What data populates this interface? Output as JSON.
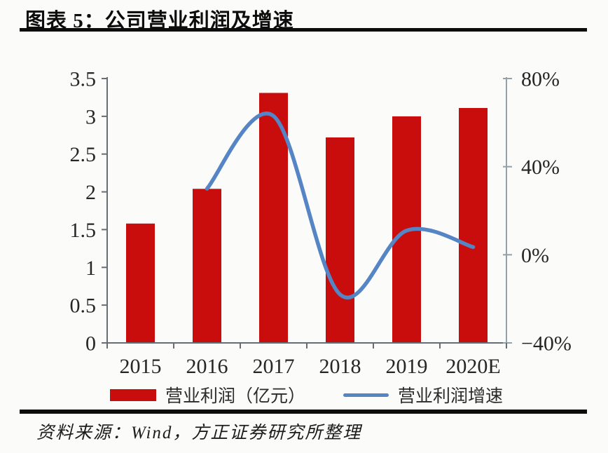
{
  "header": {
    "title": "图表 5：公司营业利润及增速"
  },
  "source": {
    "text": "资料来源：Wind，方正证券研究所整理"
  },
  "chart_data": {
    "type": "bar",
    "subtype": "combo-bar-line-dual-axis",
    "title": "公司营业利润及增速",
    "categories": [
      "2015",
      "2016",
      "2017",
      "2018",
      "2019",
      "2020E"
    ],
    "series": [
      {
        "name": "营业利润（亿元）",
        "type": "bar",
        "axis": "left",
        "color": "#c90d0d",
        "values": [
          1.58,
          2.04,
          3.31,
          2.72,
          3.0,
          3.11
        ]
      },
      {
        "name": "营业利润增速",
        "type": "line",
        "axis": "right",
        "color": "#5585c4",
        "values": [
          null,
          30,
          63,
          -18,
          11,
          3.5
        ]
      }
    ],
    "left_axis": {
      "min": 0,
      "max": 3.5,
      "ticks": [
        3.5,
        3,
        2.5,
        2,
        1.5,
        1,
        0.5,
        0
      ],
      "labels": [
        "3.5",
        "3",
        "2.5",
        "2",
        "1.5",
        "1",
        "0.5",
        "0"
      ]
    },
    "right_axis": {
      "min": -40,
      "max": 80,
      "ticks": [
        80,
        40,
        0,
        -40
      ],
      "labels": [
        "80%",
        "40%",
        "0%",
        "−40%"
      ]
    },
    "grid": false,
    "legend_position": "bottom",
    "colors": {
      "bar": "#c90d0d",
      "line": "#5585c4",
      "axis": "#666d75",
      "right_axis_line": "#93a0ae",
      "text": "#262626"
    }
  }
}
